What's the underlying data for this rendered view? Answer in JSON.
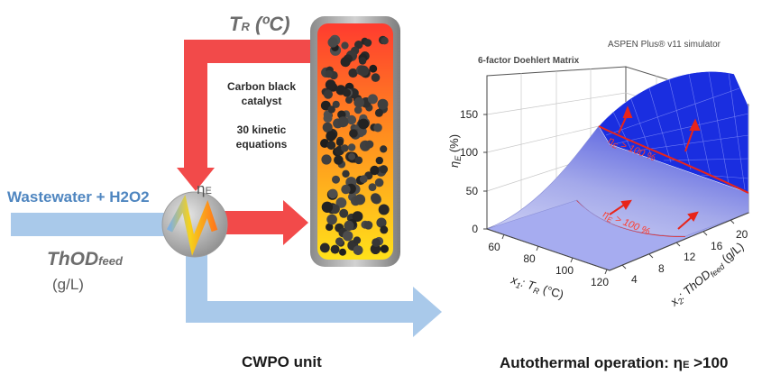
{
  "labels": {
    "wastewater": "Wastewater + H2O2",
    "thod": "ThOD",
    "thod_sub": "feed",
    "thod_units": "(g/L)",
    "tr": "T",
    "tr_sub": "R",
    "tr_units": " (ºC)",
    "eta": "η",
    "eta_sub": "E",
    "catalyst": "Carbon black catalyst",
    "kinetic": "30 kinetic equations",
    "cwpo": "CWPO unit",
    "autothermal": "Autothermal operation: η",
    "autothermal_sub": "E",
    "autothermal_tail": " >100"
  },
  "plot": {
    "doehlert": "6-factor Doehlert Matrix",
    "aspen": "ASPEN Plus® v11 simulator",
    "z_axis_label": "η",
    "z_axis_sub": "E",
    "z_axis_units": " (%)",
    "z_ticks": [
      "0",
      "50",
      "100",
      "150"
    ],
    "x_axis_label": "x",
    "x_axis_sub": "1",
    "x_axis_text": ": T",
    "x_axis_text_sub": "R",
    "x_axis_units": " (°C)",
    "x_ticks": [
      "60",
      "80",
      "100",
      "120"
    ],
    "y_axis_label": "x",
    "y_axis_sub": "2",
    "y_axis_text": ": ThOD",
    "y_axis_text_sub": "feed",
    "y_axis_units": " (g/L)",
    "y_ticks": [
      "4",
      "8",
      "12",
      "16",
      "20"
    ],
    "region_label_upper": "η",
    "region_label_upper_tail": " > 100 %",
    "region_label_lower": "η",
    "region_label_lower_tail": " > 100 %",
    "region_label_sub": "E"
  },
  "colors": {
    "stream_blue": "#a9c9ea",
    "hot_red": "#f24a4a",
    "surface_blue": "#1a2ee0",
    "surface_lavender": "#c7cbf2",
    "contour_red": "#e8241a"
  }
}
